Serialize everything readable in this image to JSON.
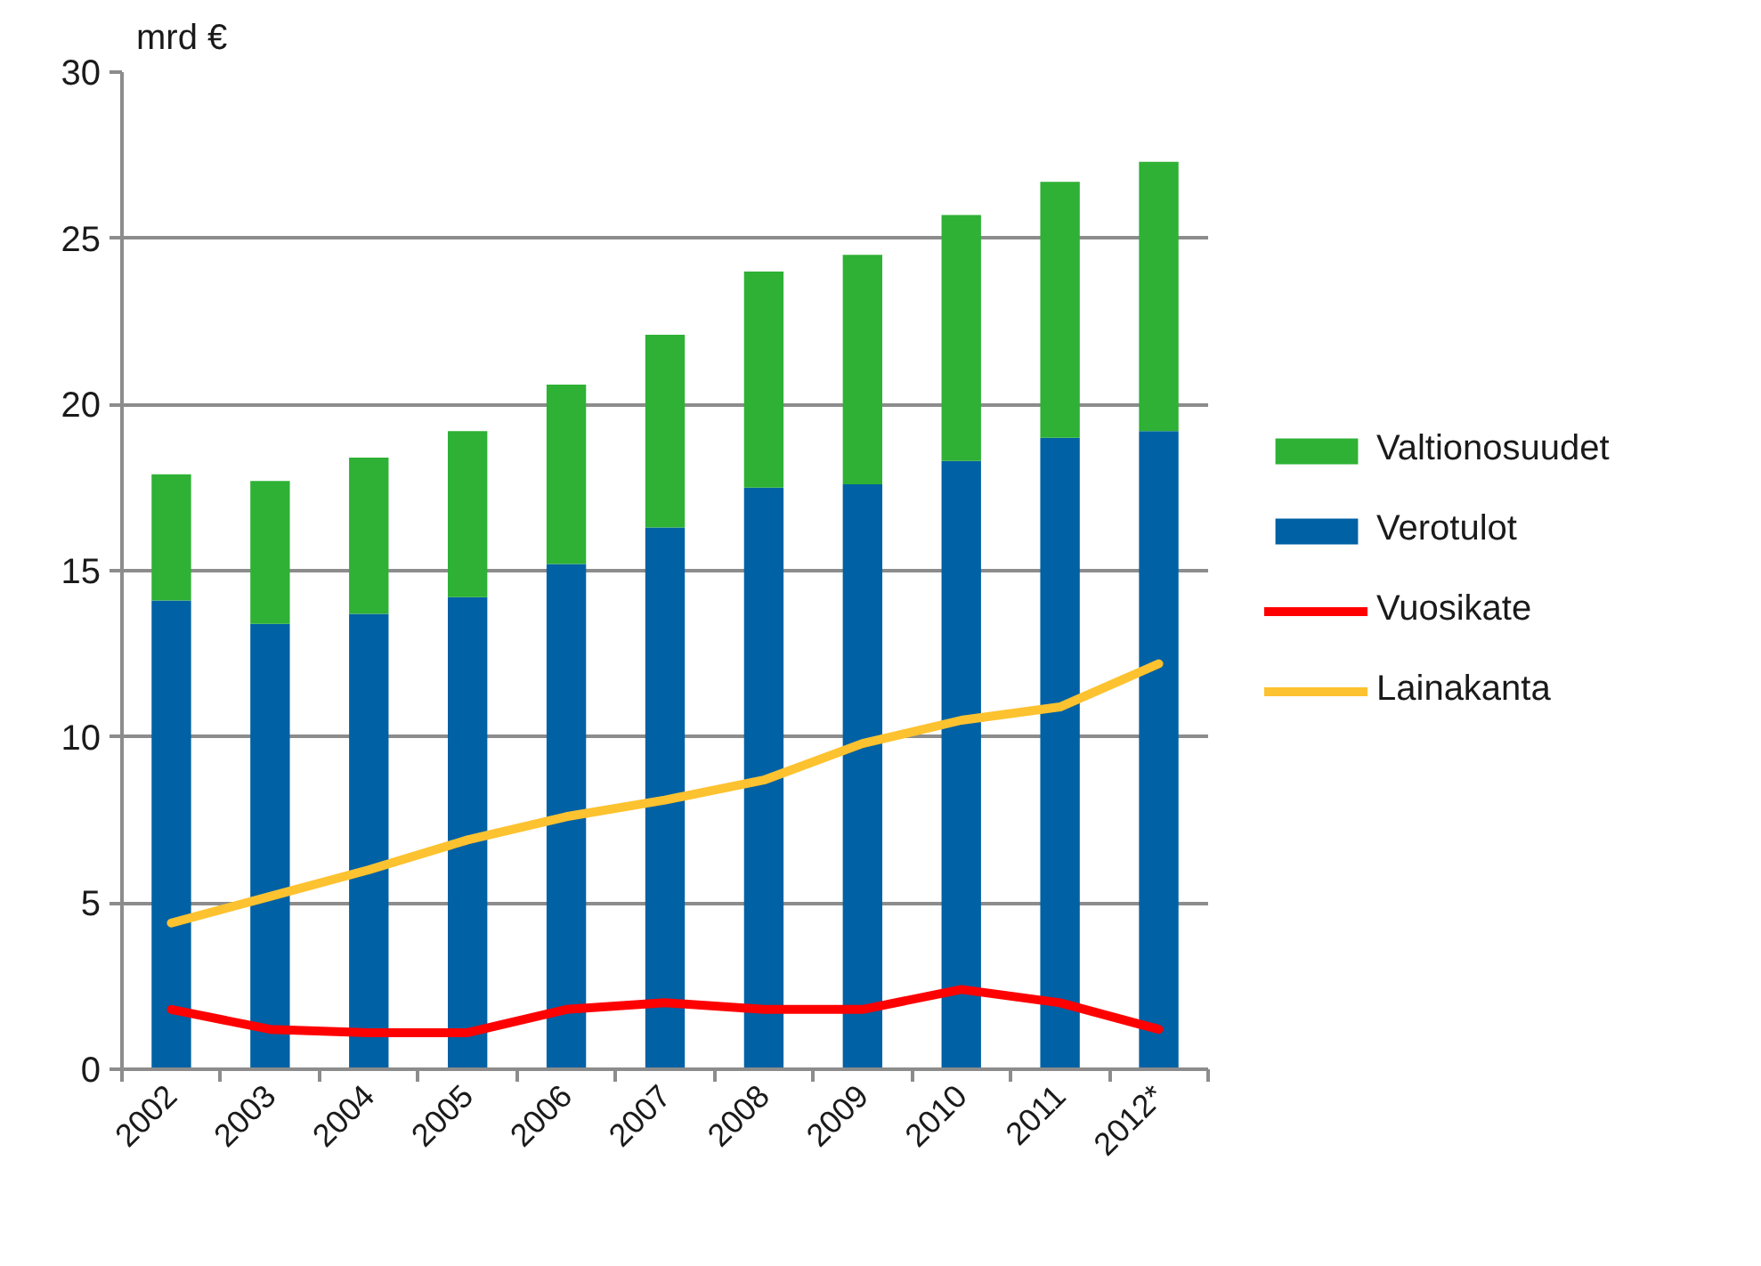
{
  "chart_data": {
    "type": "bar",
    "ylabel": "mrd €",
    "categories": [
      "2002",
      "2003",
      "2004",
      "2005",
      "2006",
      "2007",
      "2008",
      "2009",
      "2010",
      "2011",
      "2012*"
    ],
    "stacked": true,
    "series": [
      {
        "name": "Verotulot",
        "color": "#0061a4",
        "values": [
          14.1,
          13.4,
          13.7,
          14.2,
          15.2,
          16.3,
          17.5,
          17.6,
          18.3,
          19.0,
          19.2
        ]
      },
      {
        "name": "Valtionosuudet",
        "color": "#2eb135",
        "values": [
          3.8,
          4.3,
          4.7,
          5.0,
          5.4,
          5.8,
          6.5,
          6.9,
          7.4,
          7.7,
          8.1
        ]
      },
      {
        "name": "Vuosikate",
        "type": "line",
        "color": "#ff0000",
        "values": [
          1.8,
          1.2,
          1.1,
          1.1,
          1.8,
          2.0,
          1.8,
          1.8,
          2.4,
          2.0,
          1.2
        ]
      },
      {
        "name": "Lainakanta",
        "type": "line",
        "color": "#fdc22f",
        "values": [
          4.4,
          5.2,
          6.0,
          6.9,
          7.6,
          8.1,
          8.7,
          9.8,
          10.5,
          10.9,
          12.2
        ]
      }
    ],
    "ylim": [
      0,
      30
    ],
    "yticks": [
      0,
      5,
      10,
      15,
      20,
      25,
      30
    ],
    "grid": "y",
    "legend": "right"
  }
}
